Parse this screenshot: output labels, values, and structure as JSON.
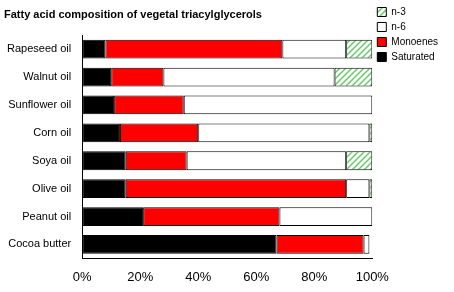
{
  "chart_data": {
    "type": "bar",
    "title": "Fatty acid composition of vegetal triacylglycerols",
    "orientation": "horizontal",
    "stacked": true,
    "grid": false,
    "legend": "right",
    "categories": [
      "Rapeseed oil",
      "Walnut oil",
      "Sunflower oil",
      "Corn oil",
      "Soya oil",
      "Olive oil",
      "Peanut oil",
      "Cocoa butter"
    ],
    "series": [
      {
        "name": "Saturated",
        "color": "#000000",
        "values": [
          8,
          10,
          11,
          13,
          15,
          15,
          21,
          67
        ]
      },
      {
        "name": "Monoenes",
        "color": "#ff0000",
        "values": [
          61,
          18,
          24,
          27,
          21,
          76,
          47,
          30
        ]
      },
      {
        "name": "n-6",
        "color": "#ffffff",
        "values": [
          22,
          59,
          65,
          59,
          55,
          8,
          32,
          2
        ]
      },
      {
        "name": "n-3",
        "color": "#66cc66",
        "values": [
          9,
          13,
          0,
          1,
          9,
          1,
          0,
          0
        ]
      }
    ],
    "xlim": [
      0,
      100
    ],
    "xticks": [
      {
        "value": 0,
        "label": "0%"
      },
      {
        "value": 20,
        "label": "20%"
      },
      {
        "value": 40,
        "label": "40%"
      },
      {
        "value": 60,
        "label": "60%"
      },
      {
        "value": 80,
        "label": "80%"
      },
      {
        "value": 100,
        "label": "100%"
      }
    ]
  }
}
